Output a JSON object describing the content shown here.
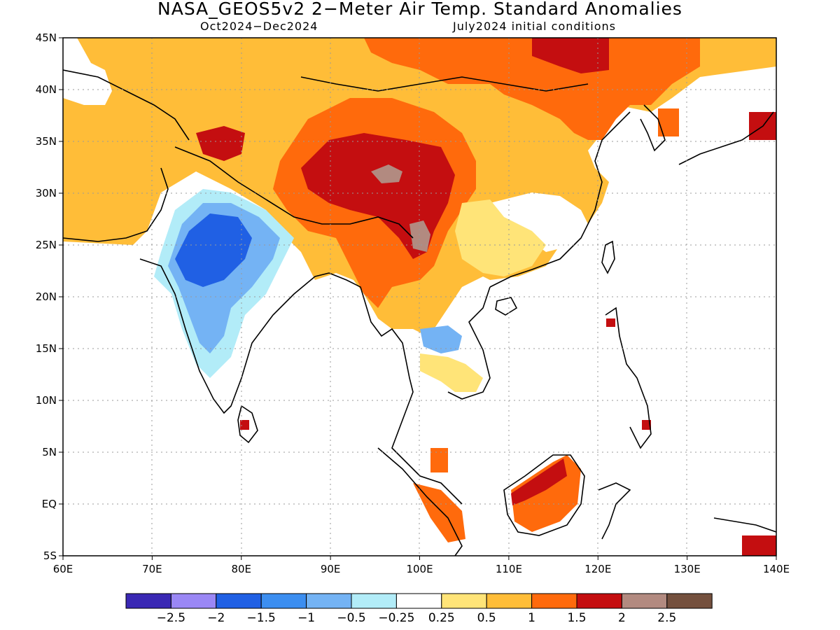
{
  "title": "NASA_GEOS5v2 2−Meter Air Temp. Standard Anomalies",
  "subtitle_left": "Oct2024−Dec2024",
  "subtitle_right": "July2024 initial conditions",
  "map": {
    "lon_range": [
      60,
      140
    ],
    "lat_range": [
      -5,
      45
    ],
    "lon_ticks": [
      "60E",
      "70E",
      "80E",
      "90E",
      "100E",
      "110E",
      "120E",
      "130E",
      "140E"
    ],
    "lat_ticks": [
      "5S",
      "EQ",
      "5N",
      "10N",
      "15N",
      "20N",
      "25N",
      "30N",
      "35N",
      "40N",
      "45N"
    ],
    "grid": "dotted"
  },
  "colorbar": {
    "colors": [
      "#3a28b4",
      "#9a87f5",
      "#2060e4",
      "#3c8ef0",
      "#74b3f4",
      "#b2ecf8",
      "#ffffff",
      "#ffe478",
      "#ffbd38",
      "#ff6a0c",
      "#c40e10",
      "#b28a80",
      "#74503e"
    ],
    "labels": [
      "−2.5",
      "−2",
      "−1.5",
      "−1",
      "−0.5",
      "−0.25",
      "0.25",
      "0.5",
      "1",
      "1.5",
      "2",
      "2.5"
    ]
  },
  "regions": [
    {
      "name": "north-asia-warm",
      "color": "#ffbd38"
    },
    {
      "name": "mongolia-northeast-china-very-warm",
      "color": "#ff6a0c"
    },
    {
      "name": "tibet-strong-warm",
      "color": "#c40e10"
    },
    {
      "name": "india-cold",
      "color": "#74b3f4"
    },
    {
      "name": "central-india-cold-core",
      "color": "#2060e4"
    },
    {
      "name": "south-china-mild",
      "color": "#ffe478"
    },
    {
      "name": "borneo-warm",
      "color": "#ff6a0c"
    },
    {
      "name": "thailand-cool",
      "color": "#74b3f4"
    }
  ]
}
